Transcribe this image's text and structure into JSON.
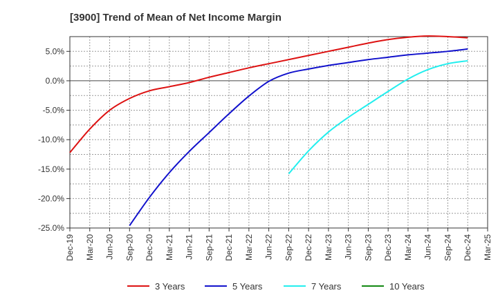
{
  "chart_data": {
    "type": "line",
    "title": "[3900]  Trend of Mean of Net Income Margin",
    "xlabel": "",
    "ylabel": "",
    "grid": true,
    "legend_position": "bottom",
    "ylim": [
      -25,
      7.5
    ],
    "y_ticks": [
      5.0,
      0.0,
      -5.0,
      -10.0,
      -15.0,
      -20.0,
      -25.0
    ],
    "y_tick_labels": [
      "5.0%",
      "0.0%",
      "-5.0%",
      "-10.0%",
      "-15.0%",
      "-20.0%",
      "-25.0%"
    ],
    "x_tick_labels": [
      "Dec-19",
      "Mar-20",
      "Jun-20",
      "Sep-20",
      "Dec-20",
      "Mar-21",
      "Jun-21",
      "Sep-21",
      "Dec-21",
      "Mar-22",
      "Jun-22",
      "Sep-22",
      "Dec-22",
      "Mar-23",
      "Jun-23",
      "Sep-23",
      "Dec-23",
      "Mar-24",
      "Jun-24",
      "Sep-24",
      "Dec-24",
      "Mar-25"
    ],
    "series": [
      {
        "name": "3 Years",
        "color": "#dd1111",
        "points": [
          [
            "Dec-19",
            -12.2
          ],
          [
            "Mar-20",
            -8.2
          ],
          [
            "Jun-20",
            -5.0
          ],
          [
            "Sep-20",
            -3.0
          ],
          [
            "Dec-20",
            -1.7
          ],
          [
            "Mar-21",
            -1.0
          ],
          [
            "Jun-21",
            -0.3
          ],
          [
            "Sep-21",
            0.6
          ],
          [
            "Dec-21",
            1.4
          ],
          [
            "Mar-22",
            2.2
          ],
          [
            "Jun-22",
            2.9
          ],
          [
            "Sep-22",
            3.6
          ],
          [
            "Dec-22",
            4.3
          ],
          [
            "Mar-23",
            5.0
          ],
          [
            "Jun-23",
            5.7
          ],
          [
            "Sep-23",
            6.4
          ],
          [
            "Dec-23",
            7.0
          ],
          [
            "Mar-24",
            7.4
          ],
          [
            "Jun-24",
            7.6
          ],
          [
            "Sep-24",
            7.5
          ],
          [
            "Dec-24",
            7.3
          ]
        ]
      },
      {
        "name": "5 Years",
        "color": "#1111cc",
        "points": [
          [
            "Sep-20",
            -24.6
          ],
          [
            "Dec-20",
            -19.8
          ],
          [
            "Mar-21",
            -15.6
          ],
          [
            "Jun-21",
            -12.0
          ],
          [
            "Sep-21",
            -8.8
          ],
          [
            "Dec-21",
            -5.6
          ],
          [
            "Mar-22",
            -2.6
          ],
          [
            "Jun-22",
            -0.1
          ],
          [
            "Sep-22",
            1.3
          ],
          [
            "Dec-22",
            2.0
          ],
          [
            "Mar-23",
            2.6
          ],
          [
            "Jun-23",
            3.1
          ],
          [
            "Sep-23",
            3.6
          ],
          [
            "Dec-23",
            4.0
          ],
          [
            "Mar-24",
            4.4
          ],
          [
            "Jun-24",
            4.7
          ],
          [
            "Sep-24",
            5.0
          ],
          [
            "Dec-24",
            5.4
          ]
        ]
      },
      {
        "name": "7 Years",
        "color": "#22eeee",
        "points": [
          [
            "Sep-22",
            -15.8
          ],
          [
            "Dec-22",
            -11.9
          ],
          [
            "Mar-23",
            -8.7
          ],
          [
            "Jun-23",
            -6.2
          ],
          [
            "Sep-23",
            -4.0
          ],
          [
            "Dec-23",
            -1.8
          ],
          [
            "Mar-24",
            0.3
          ],
          [
            "Jun-24",
            1.9
          ],
          [
            "Sep-24",
            2.9
          ],
          [
            "Dec-24",
            3.4
          ]
        ]
      },
      {
        "name": "10 Years",
        "color": "#118811",
        "points": []
      }
    ]
  }
}
